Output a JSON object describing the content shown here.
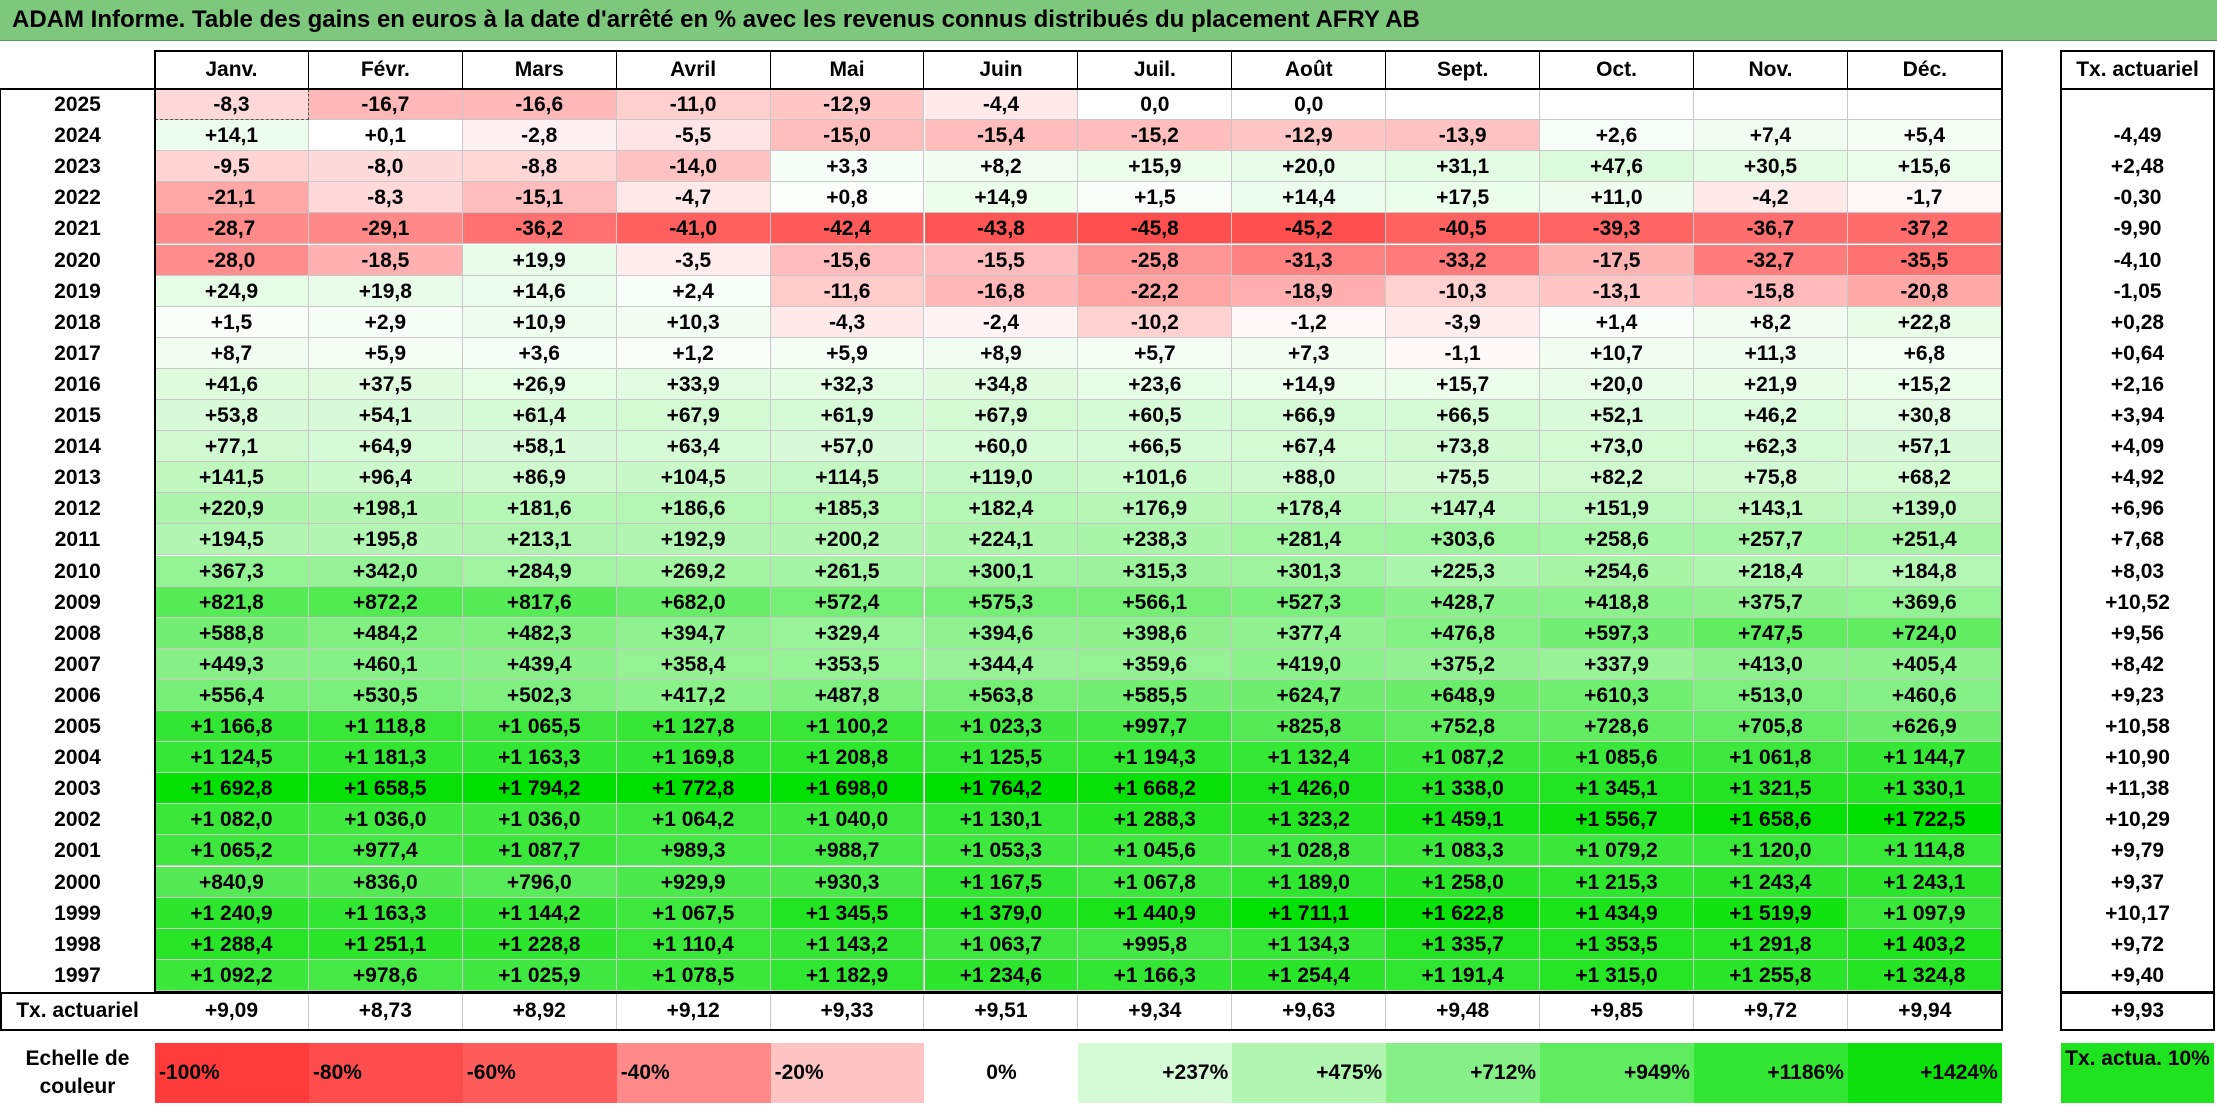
{
  "title": "ADAM Informe. Table des gains en euros à la date d'arrêté en % avec les revenus connus distribués du placement AFRY AB",
  "months": [
    "Janv.",
    "Févr.",
    "Mars",
    "Avril",
    "Mai",
    "Juin",
    "Juil.",
    "Août",
    "Sept.",
    "Oct.",
    "Nov.",
    "Déc."
  ],
  "tx_header": "Tx. actuariel",
  "rows": [
    {
      "year": "2025",
      "cells": [
        "-8,3",
        "-16,7",
        "-16,6",
        "-11,0",
        "-12,9",
        "-4,4",
        "0,0",
        "0,0",
        "",
        "",
        "",
        ""
      ],
      "tx": ""
    },
    {
      "year": "2024",
      "cells": [
        "+14,1",
        "+0,1",
        "-2,8",
        "-5,5",
        "-15,0",
        "-15,4",
        "-15,2",
        "-12,9",
        "-13,9",
        "+2,6",
        "+7,4",
        "+5,4"
      ],
      "tx": "-4,49"
    },
    {
      "year": "2023",
      "cells": [
        "-9,5",
        "-8,0",
        "-8,8",
        "-14,0",
        "+3,3",
        "+8,2",
        "+15,9",
        "+20,0",
        "+31,1",
        "+47,6",
        "+30,5",
        "+15,6"
      ],
      "tx": "+2,48"
    },
    {
      "year": "2022",
      "cells": [
        "-21,1",
        "-8,3",
        "-15,1",
        "-4,7",
        "+0,8",
        "+14,9",
        "+1,5",
        "+14,4",
        "+17,5",
        "+11,0",
        "-4,2",
        "-1,7"
      ],
      "tx": "-0,30"
    },
    {
      "year": "2021",
      "cells": [
        "-28,7",
        "-29,1",
        "-36,2",
        "-41,0",
        "-42,4",
        "-43,8",
        "-45,8",
        "-45,2",
        "-40,5",
        "-39,3",
        "-36,7",
        "-37,2"
      ],
      "tx": "-9,90"
    },
    {
      "year": "2020",
      "cells": [
        "-28,0",
        "-18,5",
        "+19,9",
        "-3,5",
        "-15,6",
        "-15,5",
        "-25,8",
        "-31,3",
        "-33,2",
        "-17,5",
        "-32,7",
        "-35,5"
      ],
      "tx": "-4,10"
    },
    {
      "year": "2019",
      "cells": [
        "+24,9",
        "+19,8",
        "+14,6",
        "+2,4",
        "-11,6",
        "-16,8",
        "-22,2",
        "-18,9",
        "-10,3",
        "-13,1",
        "-15,8",
        "-20,8"
      ],
      "tx": "-1,05"
    },
    {
      "year": "2018",
      "cells": [
        "+1,5",
        "+2,9",
        "+10,9",
        "+10,3",
        "-4,3",
        "-2,4",
        "-10,2",
        "-1,2",
        "-3,9",
        "+1,4",
        "+8,2",
        "+22,8"
      ],
      "tx": "+0,28"
    },
    {
      "year": "2017",
      "cells": [
        "+8,7",
        "+5,9",
        "+3,6",
        "+1,2",
        "+5,9",
        "+8,9",
        "+5,7",
        "+7,3",
        "-1,1",
        "+10,7",
        "+11,3",
        "+6,8"
      ],
      "tx": "+0,64"
    },
    {
      "year": "2016",
      "cells": [
        "+41,6",
        "+37,5",
        "+26,9",
        "+33,9",
        "+32,3",
        "+34,8",
        "+23,6",
        "+14,9",
        "+15,7",
        "+20,0",
        "+21,9",
        "+15,2"
      ],
      "tx": "+2,16"
    },
    {
      "year": "2015",
      "cells": [
        "+53,8",
        "+54,1",
        "+61,4",
        "+67,9",
        "+61,9",
        "+67,9",
        "+60,5",
        "+66,9",
        "+66,5",
        "+52,1",
        "+46,2",
        "+30,8"
      ],
      "tx": "+3,94"
    },
    {
      "year": "2014",
      "cells": [
        "+77,1",
        "+64,9",
        "+58,1",
        "+63,4",
        "+57,0",
        "+60,0",
        "+66,5",
        "+67,4",
        "+73,8",
        "+73,0",
        "+62,3",
        "+57,1"
      ],
      "tx": "+4,09"
    },
    {
      "year": "2013",
      "cells": [
        "+141,5",
        "+96,4",
        "+86,9",
        "+104,5",
        "+114,5",
        "+119,0",
        "+101,6",
        "+88,0",
        "+75,5",
        "+82,2",
        "+75,8",
        "+68,2"
      ],
      "tx": "+4,92"
    },
    {
      "year": "2012",
      "cells": [
        "+220,9",
        "+198,1",
        "+181,6",
        "+186,6",
        "+185,3",
        "+182,4",
        "+176,9",
        "+178,4",
        "+147,4",
        "+151,9",
        "+143,1",
        "+139,0"
      ],
      "tx": "+6,96"
    },
    {
      "year": "2011",
      "cells": [
        "+194,5",
        "+195,8",
        "+213,1",
        "+192,9",
        "+200,2",
        "+224,1",
        "+238,3",
        "+281,4",
        "+303,6",
        "+258,6",
        "+257,7",
        "+251,4"
      ],
      "tx": "+7,68"
    },
    {
      "year": "2010",
      "cells": [
        "+367,3",
        "+342,0",
        "+284,9",
        "+269,2",
        "+261,5",
        "+300,1",
        "+315,3",
        "+301,3",
        "+225,3",
        "+254,6",
        "+218,4",
        "+184,8"
      ],
      "tx": "+8,03"
    },
    {
      "year": "2009",
      "cells": [
        "+821,8",
        "+872,2",
        "+817,6",
        "+682,0",
        "+572,4",
        "+575,3",
        "+566,1",
        "+527,3",
        "+428,7",
        "+418,8",
        "+375,7",
        "+369,6"
      ],
      "tx": "+10,52"
    },
    {
      "year": "2008",
      "cells": [
        "+588,8",
        "+484,2",
        "+482,3",
        "+394,7",
        "+329,4",
        "+394,6",
        "+398,6",
        "+377,4",
        "+476,8",
        "+597,3",
        "+747,5",
        "+724,0"
      ],
      "tx": "+9,56"
    },
    {
      "year": "2007",
      "cells": [
        "+449,3",
        "+460,1",
        "+439,4",
        "+358,4",
        "+353,5",
        "+344,4",
        "+359,6",
        "+419,0",
        "+375,2",
        "+337,9",
        "+413,0",
        "+405,4"
      ],
      "tx": "+8,42"
    },
    {
      "year": "2006",
      "cells": [
        "+556,4",
        "+530,5",
        "+502,3",
        "+417,2",
        "+487,8",
        "+563,8",
        "+585,5",
        "+624,7",
        "+648,9",
        "+610,3",
        "+513,0",
        "+460,6"
      ],
      "tx": "+9,23"
    },
    {
      "year": "2005",
      "cells": [
        "+1 166,8",
        "+1 118,8",
        "+1 065,5",
        "+1 127,8",
        "+1 100,2",
        "+1 023,3",
        "+997,7",
        "+825,8",
        "+752,8",
        "+728,6",
        "+705,8",
        "+626,9"
      ],
      "tx": "+10,58"
    },
    {
      "year": "2004",
      "cells": [
        "+1 124,5",
        "+1 181,3",
        "+1 163,3",
        "+1 169,8",
        "+1 208,8",
        "+1 125,5",
        "+1 194,3",
        "+1 132,4",
        "+1 087,2",
        "+1 085,6",
        "+1 061,8",
        "+1 144,7"
      ],
      "tx": "+10,90"
    },
    {
      "year": "2003",
      "cells": [
        "+1 692,8",
        "+1 658,5",
        "+1 794,2",
        "+1 772,8",
        "+1 698,0",
        "+1 764,2",
        "+1 668,2",
        "+1 426,0",
        "+1 338,0",
        "+1 345,1",
        "+1 321,5",
        "+1 330,1"
      ],
      "tx": "+11,38"
    },
    {
      "year": "2002",
      "cells": [
        "+1 082,0",
        "+1 036,0",
        "+1 036,0",
        "+1 064,2",
        "+1 040,0",
        "+1 130,1",
        "+1 288,3",
        "+1 323,2",
        "+1 459,1",
        "+1 556,7",
        "+1 658,6",
        "+1 722,5"
      ],
      "tx": "+10,29"
    },
    {
      "year": "2001",
      "cells": [
        "+1 065,2",
        "+977,4",
        "+1 087,7",
        "+989,3",
        "+988,7",
        "+1 053,3",
        "+1 045,6",
        "+1 028,8",
        "+1 083,3",
        "+1 079,2",
        "+1 120,0",
        "+1 114,8"
      ],
      "tx": "+9,79"
    },
    {
      "year": "2000",
      "cells": [
        "+840,9",
        "+836,0",
        "+796,0",
        "+929,9",
        "+930,3",
        "+1 167,5",
        "+1 067,8",
        "+1 189,0",
        "+1 258,0",
        "+1 215,3",
        "+1 243,4",
        "+1 243,1"
      ],
      "tx": "+9,37"
    },
    {
      "year": "1999",
      "cells": [
        "+1 240,9",
        "+1 163,3",
        "+1 144,2",
        "+1 067,5",
        "+1 345,5",
        "+1 379,0",
        "+1 440,9",
        "+1 711,1",
        "+1 622,8",
        "+1 434,9",
        "+1 519,9",
        "+1 097,9"
      ],
      "tx": "+10,17"
    },
    {
      "year": "1998",
      "cells": [
        "+1 288,4",
        "+1 251,1",
        "+1 228,8",
        "+1 110,4",
        "+1 143,2",
        "+1 063,7",
        "+995,8",
        "+1 134,3",
        "+1 335,7",
        "+1 353,5",
        "+1 291,8",
        "+1 403,2"
      ],
      "tx": "+9,72"
    },
    {
      "year": "1997",
      "cells": [
        "+1 092,2",
        "+978,6",
        "+1 025,9",
        "+1 078,5",
        "+1 182,9",
        "+1 234,6",
        "+1 166,3",
        "+1 254,4",
        "+1 191,4",
        "+1 315,0",
        "+1 255,8",
        "+1 324,8"
      ],
      "tx": "+9,40"
    }
  ],
  "footer": {
    "label": "Tx. actuariel",
    "values": [
      "+9,09",
      "+8,73",
      "+8,92",
      "+9,12",
      "+9,33",
      "+9,51",
      "+9,34",
      "+9,63",
      "+9,48",
      "+9,85",
      "+9,72",
      "+9,94"
    ],
    "tx": "+9,93"
  },
  "scale": {
    "label": "Echelle de couleur",
    "items": [
      {
        "text": "-100%",
        "color": "#ff3b3b",
        "align": "left"
      },
      {
        "text": "-80%",
        "color": "#ff4d4d",
        "align": "left"
      },
      {
        "text": "-60%",
        "color": "#ff5c5c",
        "align": "left"
      },
      {
        "text": "-40%",
        "color": "#ff8a8a",
        "align": "left"
      },
      {
        "text": "-20%",
        "color": "#ffc4c4",
        "align": "left"
      },
      {
        "text": "0%",
        "color": "#ffffff",
        "align": "center"
      },
      {
        "text": "+237%",
        "color": "#d6fad6",
        "align": "right"
      },
      {
        "text": "+475%",
        "color": "#b0f5b0",
        "align": "right"
      },
      {
        "text": "+712%",
        "color": "#86f086",
        "align": "right"
      },
      {
        "text": "+949%",
        "color": "#5eeb5e",
        "align": "right"
      },
      {
        "text": "+1186%",
        "color": "#33e633",
        "align": "right"
      },
      {
        "text": "+1424%",
        "color": "#0ee00e",
        "align": "right"
      }
    ],
    "tx_label": "Tx. actua. 10%",
    "tx_color": "#1ee31e"
  },
  "colors": {
    "title_bg": "#7ec87e",
    "negative_max": "#ff4d4d",
    "positive_max": "#00e000",
    "neutral": "#ffffff"
  }
}
